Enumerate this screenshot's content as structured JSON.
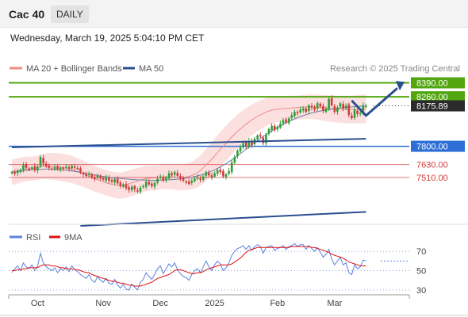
{
  "header": {
    "symbol": "Cac 40",
    "period": "DAILY"
  },
  "datetime": "Wednesday, March 19, 2025 5:04:10 PM CET",
  "credit": "Research © 2025 Trading Central",
  "colors": {
    "up": "#2e9e3a",
    "down": "#d23a3a",
    "band_fill": "#fbdada",
    "ma20": "#ef8a8a",
    "ma50": "#6b7fa8",
    "trend": "#2a4f8f",
    "resistance": "#52a60f",
    "support_blue": "#2e6fd6",
    "support_red": "#d23a3a",
    "rsi": "#5b82e0",
    "rsi_ma": "#e01010"
  },
  "chart_data": [
    {
      "type": "candlestick",
      "title": "",
      "legend": [
        {
          "name": "MA 20 + Bollinger Bands",
          "color": "#f28b82"
        },
        {
          "name": "MA 50",
          "color": "#2a4f8f"
        }
      ],
      "legend_placement": "top-left",
      "ylim": [
        7060,
        8460
      ],
      "x_labels": [
        {
          "label": "Oct",
          "index": 9
        },
        {
          "label": "Nov",
          "index": 32
        },
        {
          "label": "Dec",
          "index": 52
        },
        {
          "label": "2025",
          "index": 71
        },
        {
          "label": "Feb",
          "index": 93
        },
        {
          "label": "Mar",
          "index": 113
        }
      ],
      "n_bars": 125,
      "closes": [
        7560,
        7545,
        7570,
        7580,
        7625,
        7600,
        7590,
        7605,
        7580,
        7610,
        7700,
        7640,
        7615,
        7600,
        7590,
        7605,
        7585,
        7600,
        7595,
        7610,
        7590,
        7620,
        7600,
        7590,
        7560,
        7540,
        7525,
        7545,
        7510,
        7495,
        7525,
        7500,
        7490,
        7510,
        7480,
        7470,
        7495,
        7455,
        7430,
        7445,
        7410,
        7395,
        7425,
        7400,
        7380,
        7415,
        7430,
        7470,
        7445,
        7430,
        7460,
        7500,
        7520,
        7480,
        7510,
        7550,
        7530,
        7560,
        7525,
        7500,
        7480,
        7470,
        7450,
        7480,
        7500,
        7510,
        7490,
        7520,
        7560,
        7530,
        7510,
        7550,
        7580,
        7560,
        7520,
        7540,
        7570,
        7650,
        7700,
        7760,
        7790,
        7830,
        7800,
        7850,
        7810,
        7870,
        7900,
        7890,
        7830,
        7910,
        7960,
        7990,
        7950,
        7980,
        8010,
        8040,
        8020,
        8060,
        8090,
        8120,
        8110,
        8140,
        8150,
        8120,
        8180,
        8160,
        8140,
        8200,
        8170,
        8130,
        8150,
        8240,
        8180,
        8120,
        8160,
        8200,
        8150,
        8180,
        8090,
        8060,
        8140,
        8100,
        8110,
        8180,
        8175
      ],
      "moving_averages": [
        {
          "name": "MA 20",
          "values": [
            7560,
            7565,
            7570,
            7578,
            7585,
            7588,
            7590,
            7592,
            7596,
            7600,
            7608,
            7612,
            7615,
            7615,
            7613,
            7612,
            7608,
            7605,
            7600,
            7598,
            7592,
            7585,
            7575,
            7565,
            7555,
            7545,
            7532,
            7520,
            7508,
            7498,
            7490,
            7480,
            7470,
            7460,
            7452,
            7446,
            7440,
            7436,
            7434,
            7438,
            7444,
            7452,
            7460,
            7468,
            7476,
            7486,
            7494,
            7500,
            7502,
            7503,
            7505,
            7508,
            7512,
            7515,
            7516,
            7515,
            7514,
            7512,
            7510,
            7510,
            7512,
            7515,
            7520,
            7528,
            7540,
            7555,
            7575,
            7600,
            7625,
            7652,
            7680,
            7710,
            7740,
            7770,
            7800,
            7830,
            7858,
            7885,
            7912,
            7938,
            7962,
            7985,
            8005,
            8025,
            8045,
            8062,
            8078,
            8092,
            8105,
            8118,
            8128,
            8136,
            8142,
            8146,
            8148,
            8150,
            8152,
            8154,
            8156,
            8158,
            8160,
            8162,
            8164,
            8166,
            8168,
            8168,
            8166,
            8164,
            8160,
            8158,
            8155,
            8152,
            8150,
            8148,
            8146,
            8145,
            8144,
            8143,
            8142,
            8142,
            8143,
            8144,
            8146,
            8148,
            8150
          ]
        },
        {
          "name": "MA 50",
          "values": [
            7560,
            7562,
            7565,
            7568,
            7572,
            7575,
            7578,
            7580,
            7582,
            7584,
            7586,
            7587,
            7588,
            7588,
            7587,
            7586,
            7584,
            7582,
            7580,
            7577,
            7574,
            7570,
            7566,
            7562,
            7557,
            7552,
            7547,
            7542,
            7537,
            7532,
            7528,
            7524,
            7520,
            7516,
            7512,
            7509,
            7506,
            7503,
            7500,
            7498,
            7496,
            7494,
            7492,
            7490,
            7488,
            7487,
            7486,
            7485,
            7484,
            7484,
            7484,
            7484,
            7485,
            7486,
            7487,
            7488,
            7490,
            7492,
            7494,
            7497,
            7500,
            7504,
            7508,
            7513,
            7518,
            7524,
            7531,
            7539,
            7548,
            7558,
            7569,
            7581,
            7594,
            7608,
            7623,
            7639,
            7656,
            7674,
            7693,
            7712,
            7732,
            7752,
            7772,
            7792,
            7812,
            7832,
            7852,
            7871,
            7890,
            7908,
            7926,
            7943,
            7959,
            7975,
            7990,
            8004,
            8018,
            8031,
            8043,
            8055,
            8066,
            8076,
            8085,
            8094,
            8102,
            8110,
            8116,
            8122,
            8128,
            8133,
            8138,
            8142,
            8146,
            8150,
            8153,
            8156,
            8159,
            8162,
            8164,
            8166,
            8168,
            8170,
            8172,
            8174,
            8176
          ]
        }
      ],
      "bollinger_width": [
        120,
        120,
        118,
        116,
        115,
        114,
        113,
        112,
        112,
        112,
        115,
        118,
        120,
        122,
        124,
        125,
        126,
        127,
        128,
        128,
        128,
        127,
        126,
        125,
        124,
        123,
        122,
        121,
        120,
        119,
        118,
        118,
        118,
        118,
        118,
        119,
        120,
        121,
        122,
        123,
        124,
        124,
        124,
        123,
        122,
        121,
        120,
        118,
        116,
        115,
        114,
        113,
        112,
        112,
        112,
        113,
        114,
        115,
        117,
        119,
        121,
        123,
        126,
        129,
        133,
        137,
        141,
        145,
        149,
        152,
        155,
        158,
        160,
        161,
        162,
        162,
        162,
        161,
        160,
        158,
        156,
        153,
        150,
        147,
        144,
        141,
        138,
        135,
        132,
        130,
        128,
        126,
        124,
        122,
        120,
        118,
        116,
        115,
        114,
        113,
        112,
        112,
        112,
        112,
        113,
        114,
        115,
        116,
        118,
        120,
        121,
        122,
        123,
        124,
        125,
        126,
        127,
        128,
        129,
        130,
        131,
        132,
        133,
        134,
        135
      ],
      "horizontal_levels": [
        {
          "value": 8390,
          "label": "8390.00",
          "color": "#52a60f",
          "style": "solid-thick",
          "tag_fill": "#52a60f",
          "tag_text": "#ffffff"
        },
        {
          "value": 8260,
          "label": "8260.00",
          "color": "#52a60f",
          "style": "solid-thick",
          "tag_fill": "#52a60f",
          "tag_text": "#ffffff"
        },
        {
          "value": 8175.89,
          "label": "8175.89",
          "color": "#2b2b2b",
          "style": "dotted",
          "tag_fill": "#2b2b2b",
          "tag_text": "#ffffff"
        },
        {
          "value": 7800,
          "label": "7800.00",
          "color": "#2e6fd6",
          "style": "solid",
          "tag_fill": "#2e6fd6",
          "tag_text": "#ffffff"
        },
        {
          "value": 7630,
          "label": "7630.00",
          "color": "#d23a3a",
          "style": "solid-thin",
          "tag_fill": "none",
          "tag_text": "#d23a3a"
        },
        {
          "value": 7510,
          "label": "7510.00",
          "color": "#d23a3a",
          "style": "solid-thin",
          "tag_fill": "none",
          "tag_text": "#d23a3a"
        }
      ],
      "trendlines": [
        {
          "from": [
            0,
            7790
          ],
          "to": [
            124,
            7870
          ]
        },
        {
          "from": [
            24,
            7060
          ],
          "to": [
            124,
            7190
          ]
        }
      ],
      "scenario_path": [
        [
          119,
          8225
        ],
        [
          124,
          8085
        ],
        [
          135,
          8340
        ]
      ]
    },
    {
      "type": "line",
      "title": "",
      "legend": [
        {
          "name": "RSI",
          "color": "#5b82e0"
        },
        {
          "name": "9MA",
          "color": "#e01010"
        }
      ],
      "legend_placement": "top-left",
      "ylim": [
        25,
        80
      ],
      "y_ticks": [
        70,
        50,
        30
      ],
      "series": [
        {
          "name": "RSI",
          "values": [
            48,
            52,
            55,
            50,
            58,
            54,
            52,
            56,
            50,
            55,
            68,
            58,
            54,
            52,
            50,
            53,
            48,
            52,
            50,
            54,
            49,
            55,
            51,
            49,
            46,
            44,
            42,
            46,
            40,
            38,
            44,
            40,
            38,
            42,
            37,
            36,
            41,
            35,
            32,
            36,
            31,
            30,
            36,
            33,
            30,
            38,
            41,
            48,
            44,
            41,
            46,
            52,
            55,
            47,
            52,
            57,
            54,
            58,
            51,
            47,
            44,
            43,
            40,
            46,
            50,
            52,
            48,
            54,
            60,
            54,
            50,
            56,
            60,
            57,
            50,
            53,
            58,
            66,
            70,
            73,
            74,
            76,
            72,
            76,
            71,
            75,
            77,
            75,
            68,
            74,
            75,
            76,
            71,
            73,
            74,
            76,
            72,
            75,
            76,
            78,
            75,
            77,
            77,
            72,
            76,
            73,
            70,
            74,
            69,
            64,
            67,
            72,
            62,
            56,
            60,
            64,
            56,
            58,
            48,
            46,
            56,
            52,
            54,
            61,
            60
          ]
        },
        {
          "name": "9MA",
          "values": [
            50,
            50,
            51,
            51,
            52,
            52,
            53,
            53,
            53,
            53,
            55,
            56,
            56,
            56,
            55,
            55,
            54,
            53,
            53,
            52,
            52,
            52,
            51,
            51,
            50,
            49,
            48,
            48,
            46,
            45,
            44,
            43,
            42,
            41,
            40,
            39,
            39,
            38,
            37,
            37,
            36,
            35,
            35,
            34,
            34,
            34,
            35,
            36,
            37,
            38,
            40,
            42,
            43,
            44,
            45,
            46,
            48,
            50,
            51,
            51,
            50,
            49,
            48,
            47,
            47,
            48,
            48,
            49,
            51,
            52,
            53,
            54,
            55,
            56,
            56,
            56,
            56,
            57,
            59,
            61,
            63,
            66,
            69,
            71,
            72,
            73,
            74,
            74,
            74,
            74,
            74,
            74,
            74,
            74,
            74,
            74,
            74,
            74,
            75,
            75,
            75,
            75,
            75,
            75,
            75,
            74,
            74,
            73,
            72,
            71,
            70,
            69,
            67,
            66,
            65,
            64,
            63,
            61,
            59,
            58,
            57,
            56,
            55,
            55,
            55
          ]
        }
      ]
    }
  ]
}
